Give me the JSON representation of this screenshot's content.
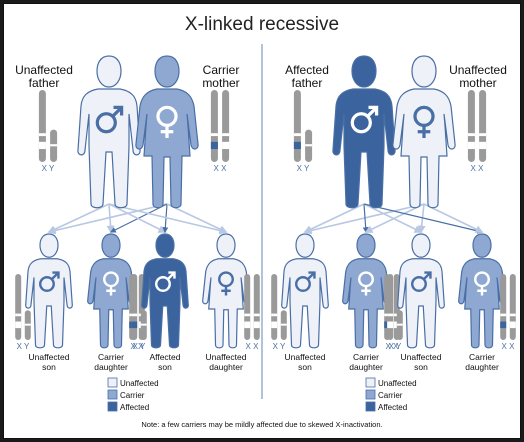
{
  "title": "X-linked recessive",
  "colors": {
    "unaffected": "#eef1f8",
    "carrier": "#8ea8d2",
    "affected": "#3b639e",
    "outline": "#4a6fa5",
    "chromosome": "#9a9a9a",
    "arrow_light": "#b8c8e4",
    "arrow_dark": "#4a6fa5",
    "divider": "#9aaed0"
  },
  "panels": [
    {
      "parents": [
        {
          "label_line1": "Unaffected",
          "label_line2": "father",
          "status": "unaffected",
          "sex": "male",
          "sex_icon": "male-symbol",
          "chrom_label": "X Y"
        },
        {
          "label_line1": "Carrier",
          "label_line2": "mother",
          "status": "carrier",
          "sex": "female",
          "sex_icon": "female-symbol",
          "chrom_label": "X X"
        }
      ],
      "children": [
        {
          "label_line1": "Unaffected",
          "label_line2": "son",
          "status": "unaffected",
          "sex": "male",
          "chrom_label": "X Y"
        },
        {
          "label_line1": "Carrier",
          "label_line2": "daughter",
          "status": "carrier",
          "sex": "female",
          "chrom_label": "X X"
        },
        {
          "label_line1": "Affected",
          "label_line2": "son",
          "status": "affected",
          "sex": "male",
          "chrom_label": "X Y"
        },
        {
          "label_line1": "Unaffected",
          "label_line2": "daughter",
          "status": "unaffected",
          "sex": "female",
          "chrom_label": "X X"
        }
      ]
    },
    {
      "parents": [
        {
          "label_line1": "Affected",
          "label_line2": "father",
          "status": "affected",
          "sex": "male",
          "sex_icon": "male-symbol",
          "chrom_label": "X Y"
        },
        {
          "label_line1": "Unaffected",
          "label_line2": "mother",
          "status": "unaffected",
          "sex": "female",
          "sex_icon": "female-symbol",
          "chrom_label": "X X"
        }
      ],
      "children": [
        {
          "label_line1": "Unaffected",
          "label_line2": "son",
          "status": "unaffected",
          "sex": "male",
          "chrom_label": "X Y"
        },
        {
          "label_line1": "Carrier",
          "label_line2": "daughter",
          "status": "carrier",
          "sex": "female",
          "chrom_label": "X X"
        },
        {
          "label_line1": "Unaffected",
          "label_line2": "son",
          "status": "unaffected",
          "sex": "male",
          "chrom_label": "X Y"
        },
        {
          "label_line1": "Carrier",
          "label_line2": "daughter",
          "status": "carrier",
          "sex": "female",
          "chrom_label": "X X"
        }
      ]
    }
  ],
  "legend": [
    {
      "label": "Unaffected",
      "status": "unaffected"
    },
    {
      "label": "Carrier",
      "status": "carrier"
    },
    {
      "label": "Affected",
      "status": "affected"
    }
  ],
  "note": "Note: a few carriers may be mildly affected due to skewed X-inactivation."
}
